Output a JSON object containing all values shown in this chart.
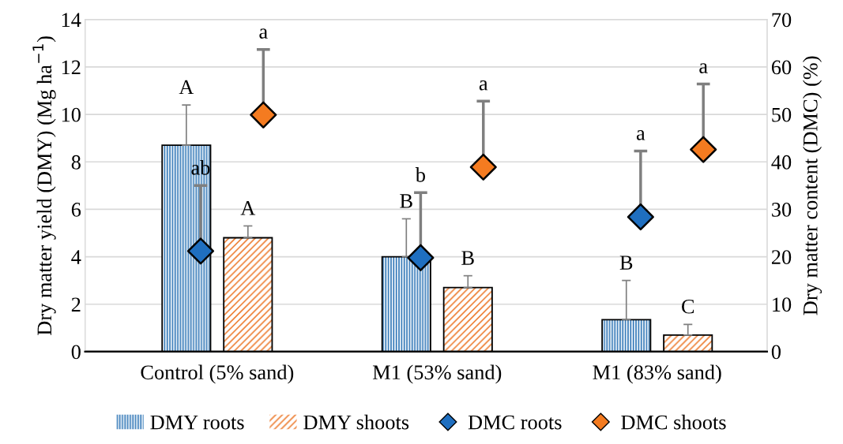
{
  "chart_data": {
    "type": "bar",
    "categories": [
      "Control (5% sand)",
      "M1 (53% sand)",
      "M1 (83% sand)"
    ],
    "ylabel": "Dry matter yield (DMY) (Mg ha$^{−1}$)",
    "y2label": "Dry matter content (DMC) (%)",
    "ylim": [
      0,
      14
    ],
    "yticks": [
      0,
      2,
      4,
      6,
      8,
      10,
      12,
      14
    ],
    "y2lim": [
      0,
      70
    ],
    "y2ticks": [
      0,
      10,
      20,
      30,
      40,
      50,
      60,
      70
    ],
    "grid": "y",
    "legend": "bottom",
    "series": [
      {
        "name": "DMY roots",
        "color": "#2e75b6",
        "values": [
          8.7,
          4.0,
          1.35
        ],
        "errors": [
          [
            8.7,
            10.4
          ],
          [
            4.0,
            5.6
          ],
          [
            1.35,
            3.0
          ]
        ],
        "value_labels": [
          "A",
          "B",
          "B"
        ]
      },
      {
        "name": "DMY shoots",
        "color": "#ed7d31",
        "values": [
          4.8,
          2.7,
          0.7
        ],
        "errors": [
          [
            4.8,
            5.3
          ],
          [
            2.7,
            3.2
          ],
          [
            0.7,
            1.15
          ]
        ],
        "value_labels": [
          "A",
          "B",
          "C"
        ]
      },
      {
        "name": "DMC roots",
        "type": "scatter",
        "axis": "y2",
        "marker": "diamond",
        "color": "#1f6fc0",
        "values": [
          21.2,
          19.8,
          28.4
        ],
        "errors": [
          [
            21.2,
            35.0
          ],
          [
            19.8,
            33.5
          ],
          [
            28.4,
            42.3
          ]
        ],
        "value_labels": [
          "ab",
          "b",
          "a"
        ]
      },
      {
        "name": "DMC shoots",
        "type": "scatter",
        "axis": "y2",
        "marker": "diamond",
        "color": "#f47b20",
        "values": [
          49.9,
          38.9,
          42.6
        ],
        "errors": [
          [
            49.9,
            63.7
          ],
          [
            38.9,
            52.8
          ],
          [
            42.6,
            56.4
          ]
        ],
        "value_labels": [
          "a",
          "a",
          "a"
        ]
      }
    ]
  }
}
